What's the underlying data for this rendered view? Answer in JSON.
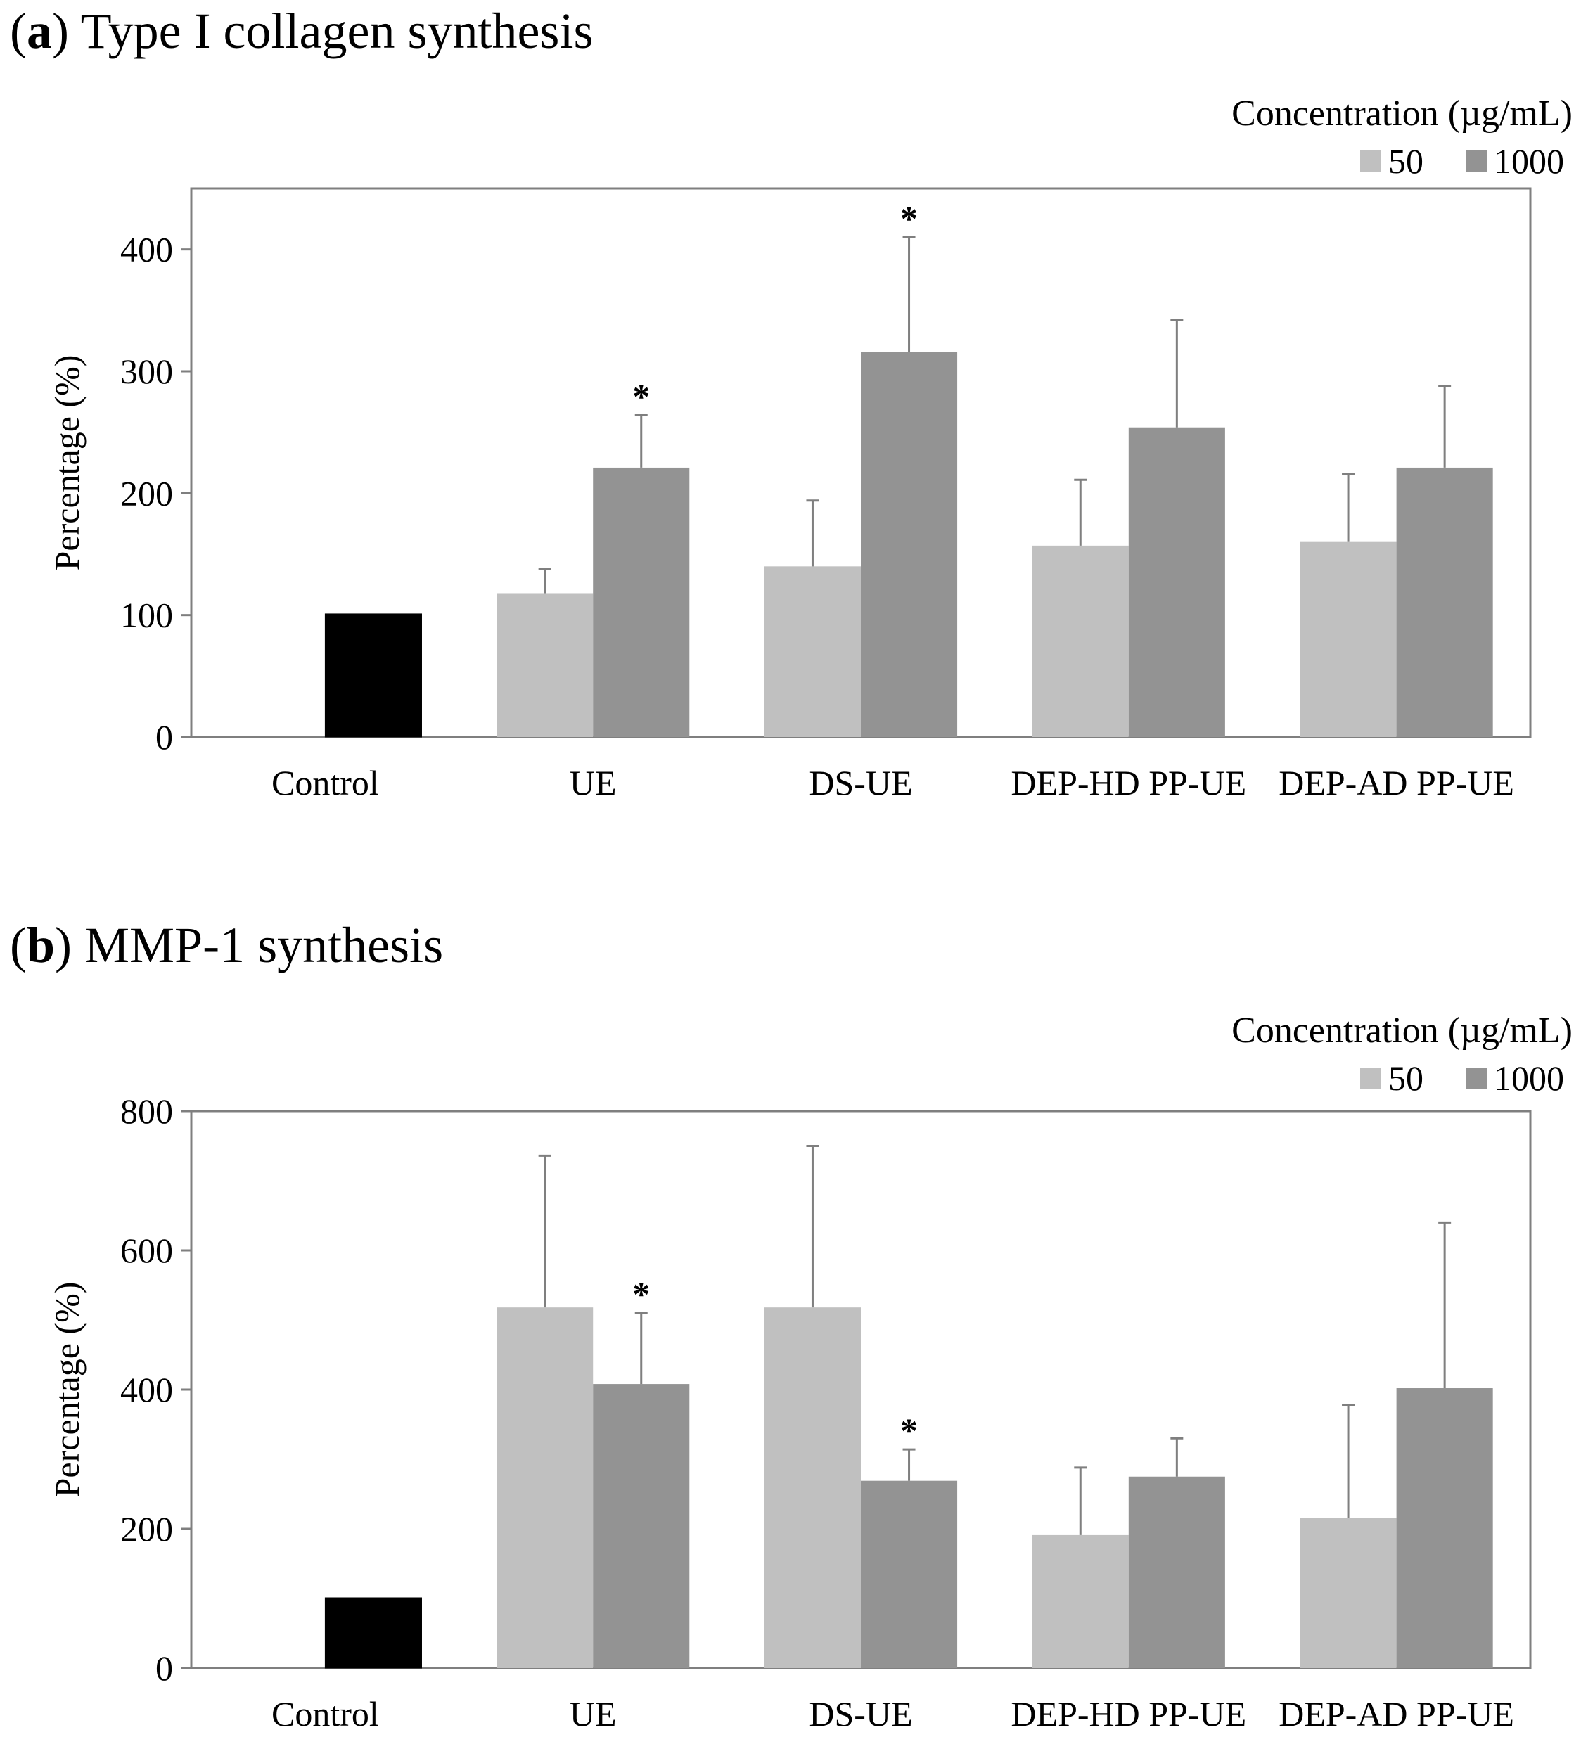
{
  "chart_data": [
    {
      "type": "bar",
      "panel_letter": "a",
      "title": "Type I collagen synthesis",
      "ylabel": "Percentage (%)",
      "xlabel": "",
      "ylim": [
        0,
        450
      ],
      "yticks": [
        "0",
        "100",
        "200",
        "300",
        "400"
      ],
      "ytick_values": [
        0,
        100,
        200,
        300,
        400
      ],
      "legend_title": "Concentration (µg/mL)",
      "legend_placement": "top-right",
      "categories": [
        "Control",
        "UE",
        "DS-UE",
        "DEP-HD PP-UE",
        "DEP-AD PP-UE"
      ],
      "control": {
        "value": 101,
        "color": "#000000"
      },
      "series": [
        {
          "name": "50",
          "color": "#c0c0c0",
          "values": [
            null,
            118,
            140,
            157,
            160
          ],
          "errors": [
            null,
            20,
            54,
            54,
            56
          ],
          "significant": [
            false,
            false,
            false,
            false,
            false
          ]
        },
        {
          "name": "1000",
          "color": "#939393",
          "values": [
            null,
            221,
            316,
            254,
            221
          ],
          "errors": [
            null,
            43,
            94,
            88,
            67
          ],
          "significant": [
            false,
            true,
            true,
            false,
            false
          ]
        }
      ],
      "significance_marker": "*",
      "grid": false
    },
    {
      "type": "bar",
      "panel_letter": "b",
      "title": "MMP-1 synthesis",
      "ylabel": "Percentage (%)",
      "xlabel": "",
      "ylim": [
        0,
        800
      ],
      "yticks": [
        "0",
        "200",
        "400",
        "600",
        "800"
      ],
      "ytick_values": [
        0,
        200,
        400,
        600,
        800
      ],
      "legend_title": "Concentration (µg/mL)",
      "legend_placement": "top-right",
      "categories": [
        "Control",
        "UE",
        "DS-UE",
        "DEP-HD PP-UE",
        "DEP-AD PP-UE"
      ],
      "control": {
        "value": 101,
        "color": "#000000"
      },
      "series": [
        {
          "name": "50",
          "color": "#c0c0c0",
          "values": [
            null,
            518,
            518,
            191,
            216
          ],
          "errors": [
            null,
            218,
            232,
            97,
            162
          ],
          "significant": [
            false,
            false,
            false,
            false,
            false
          ]
        },
        {
          "name": "1000",
          "color": "#939393",
          "values": [
            null,
            408,
            269,
            275,
            402
          ],
          "errors": [
            null,
            102,
            45,
            55,
            238
          ],
          "significant": [
            false,
            true,
            true,
            false,
            false
          ]
        }
      ],
      "significance_marker": "*",
      "grid": false
    }
  ]
}
